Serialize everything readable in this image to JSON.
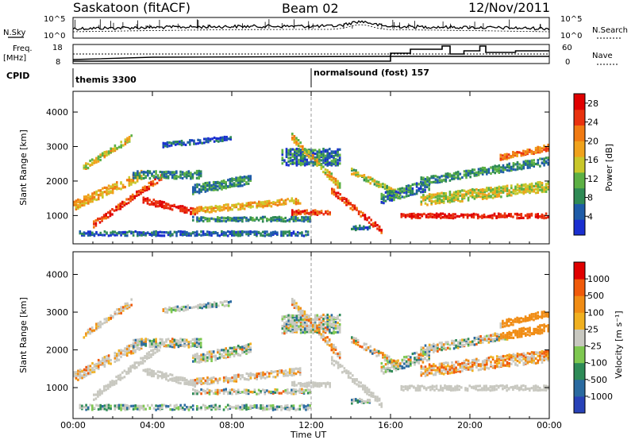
{
  "header": {
    "title": "Saskatoon (fitACF)",
    "beam": "Beam 02",
    "date": "12/Nov/2011"
  },
  "strip1": {
    "left_label": "N.Sky",
    "right_label": "N.Search",
    "left_ticks": [
      "10^5",
      "10^0"
    ],
    "right_ticks": [
      "10^5",
      "10^0"
    ]
  },
  "strip2": {
    "left_label_1": "Freq.",
    "left_label_2": "[MHz]",
    "right_label": "Nave",
    "left_ticks": [
      "18",
      "8"
    ],
    "right_ticks": [
      "60",
      "0"
    ]
  },
  "cpid": {
    "label": "CPID",
    "programs": [
      {
        "name": "themis 3300",
        "start_hour": 0
      },
      {
        "name": "normalsound (fost) 157",
        "start_hour": 12
      }
    ]
  },
  "colors": {
    "power_scale": [
      "#1a2fd0",
      "#1e5ca8",
      "#2f8a55",
      "#5cb044",
      "#c9c72a",
      "#f0a21c",
      "#f07a12",
      "#e9320e",
      "#e00000"
    ],
    "velocity_scale": [
      "#2842b8",
      "#2a6aa0",
      "#2e8b57",
      "#7ec850",
      "#c8c8c0",
      "#f0b020",
      "#f08c14",
      "#f05a0a",
      "#e00000"
    ]
  },
  "chart_data": [
    {
      "type": "heatmap",
      "title": "",
      "xlabel": "Time UT",
      "ylabel": "Slant Range [km]",
      "xlim": [
        0,
        24
      ],
      "ylim": [
        180,
        4600
      ],
      "x_ticks": [
        "00:00",
        "04:00",
        "08:00",
        "12:00",
        "16:00",
        "20:00",
        "00:00"
      ],
      "y_ticks": [
        1000,
        2000,
        3000,
        4000
      ],
      "colorbar_label": "Power [dB]",
      "colorbar_ticks": [
        4,
        8,
        12,
        16,
        20,
        24,
        28
      ],
      "colorbar_range": [
        0,
        30
      ]
    },
    {
      "type": "heatmap",
      "title": "",
      "xlabel": "Time UT",
      "ylabel": "Slant Range [km]",
      "xlim": [
        0,
        24
      ],
      "ylim": [
        180,
        4600
      ],
      "x_ticks": [
        "00:00",
        "04:00",
        "08:00",
        "12:00",
        "16:00",
        "20:00",
        "00:00"
      ],
      "y_ticks": [
        1000,
        2000,
        3000,
        4000
      ],
      "colorbar_label": "Velocity [m s⁻¹]",
      "colorbar_ticks": [
        "1000",
        "500",
        "100",
        "25",
        "-25",
        "-100",
        "-500",
        "-1000"
      ]
    }
  ]
}
